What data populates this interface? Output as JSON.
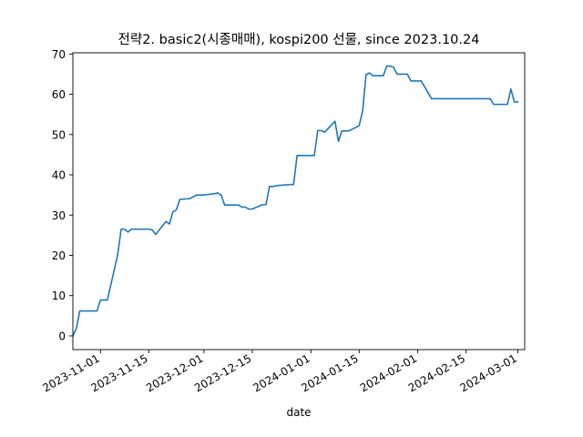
{
  "chart_data": {
    "type": "line",
    "title": "전략2. basic2(시종매매), kospi200 선물, since 2023.10.24",
    "xlabel": "date",
    "ylabel": "",
    "xlim": [
      "2023-10-24",
      "2024-03-03"
    ],
    "ylim": [
      -3.4,
      70.3
    ],
    "grid": false,
    "x_ticks": [
      "2023-11-01",
      "2023-11-15",
      "2023-12-01",
      "2023-12-15",
      "2024-01-01",
      "2024-01-15",
      "2024-02-01",
      "2024-02-15",
      "2024-03-01"
    ],
    "y_ticks": [
      0,
      10,
      20,
      30,
      40,
      50,
      60,
      70
    ],
    "series": [
      {
        "color": "#1f77b4",
        "x": [
          "2023-10-24",
          "2023-10-25",
          "2023-10-26",
          "2023-10-27",
          "2023-10-30",
          "2023-10-31",
          "2023-11-01",
          "2023-11-02",
          "2023-11-03",
          "2023-11-06",
          "2023-11-07",
          "2023-11-08",
          "2023-11-09",
          "2023-11-10",
          "2023-11-13",
          "2023-11-14",
          "2023-11-15",
          "2023-11-16",
          "2023-11-17",
          "2023-11-20",
          "2023-11-21",
          "2023-11-22",
          "2023-11-23",
          "2023-11-24",
          "2023-11-27",
          "2023-11-28",
          "2023-11-29",
          "2023-11-30",
          "2023-12-01",
          "2023-12-04",
          "2023-12-05",
          "2023-12-06",
          "2023-12-07",
          "2023-12-08",
          "2023-12-11",
          "2023-12-12",
          "2023-12-13",
          "2023-12-14",
          "2023-12-15",
          "2023-12-18",
          "2023-12-19",
          "2023-12-20",
          "2023-12-21",
          "2023-12-22",
          "2023-12-26",
          "2023-12-27",
          "2023-12-28",
          "2024-01-02",
          "2024-01-03",
          "2024-01-04",
          "2024-01-05",
          "2024-01-08",
          "2024-01-09",
          "2024-01-10",
          "2024-01-11",
          "2024-01-12",
          "2024-01-15",
          "2024-01-16",
          "2024-01-17",
          "2024-01-18",
          "2024-01-19",
          "2024-01-22",
          "2024-01-23",
          "2024-01-24",
          "2024-01-25",
          "2024-01-26",
          "2024-01-29",
          "2024-01-30",
          "2024-01-31",
          "2024-02-01",
          "2024-02-02",
          "2024-02-05",
          "2024-02-06",
          "2024-02-07",
          "2024-02-08",
          "2024-02-13",
          "2024-02-14",
          "2024-02-15",
          "2024-02-16",
          "2024-02-19",
          "2024-02-20",
          "2024-02-21",
          "2024-02-22",
          "2024-02-23",
          "2024-02-26",
          "2024-02-27",
          "2024-02-28",
          "2024-02-29",
          "2024-03-01"
        ],
        "values": [
          0,
          1.8,
          6.2,
          6.2,
          6.2,
          6.2,
          8.9,
          8.9,
          8.9,
          20.2,
          26.5,
          26.5,
          25.8,
          26.5,
          26.5,
          26.5,
          26.5,
          26.3,
          25.2,
          28.4,
          27.8,
          30.8,
          31.3,
          33.9,
          34.1,
          34.6,
          35.0,
          35.0,
          35.0,
          35.3,
          35.5,
          35.0,
          32.5,
          32.5,
          32.5,
          32.0,
          32.0,
          31.5,
          31.5,
          32.6,
          32.6,
          37.1,
          37.1,
          37.3,
          37.6,
          37.6,
          44.8,
          44.8,
          51.0,
          51.0,
          50.6,
          53.3,
          48.3,
          50.9,
          50.9,
          50.9,
          52.2,
          55.8,
          64.9,
          65.3,
          64.6,
          64.6,
          67.0,
          67.0,
          66.7,
          65.0,
          65.0,
          63.3,
          63.3,
          63.3,
          63.3,
          58.9,
          58.9,
          58.9,
          58.9,
          58.9,
          58.9,
          58.9,
          58.9,
          58.9,
          58.9,
          58.9,
          58.9,
          57.5,
          57.5,
          57.5,
          61.3,
          58.1,
          58.1
        ]
      }
    ]
  }
}
